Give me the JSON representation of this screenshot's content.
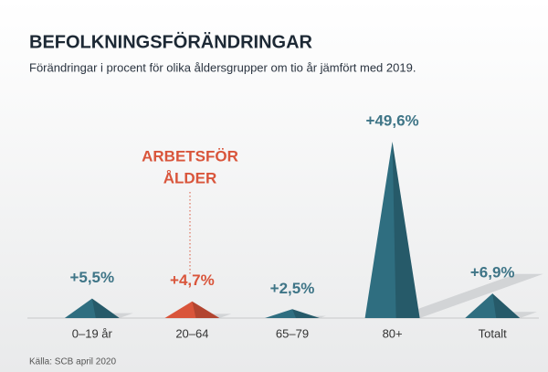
{
  "chart_data": {
    "type": "bar",
    "title": "BEFOLKNINGSFÖRÄNDRINGAR",
    "subtitle": "Förändringar i procent för olika åldersgrupper om tio år jämfört med 2019.",
    "categories": [
      "0–19 år",
      "20–64",
      "65–79",
      "80+",
      "Totalt"
    ],
    "values": [
      5.5,
      4.7,
      2.5,
      49.6,
      6.9
    ],
    "value_labels": [
      "+5,5%",
      "+4,7%",
      "+2,5%",
      "+49,6%",
      "+6,9%"
    ],
    "colors": [
      "#2f6e80",
      "#d9553b",
      "#2f6e80",
      "#2f6e80",
      "#2f6e80"
    ],
    "annotation": [
      "ARBETSFÖR",
      "ÅLDER"
    ],
    "source": "Källa: SCB april 2020"
  }
}
